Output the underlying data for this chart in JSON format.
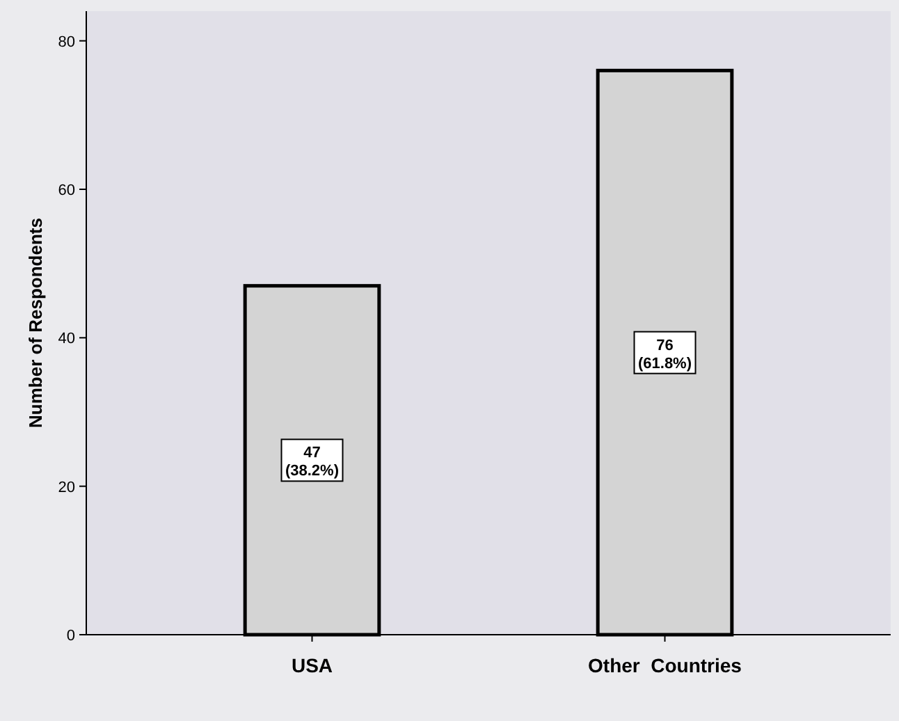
{
  "chart_data": {
    "type": "bar",
    "ylabel": "Number of Respondents",
    "categories": [
      "USA",
      "Other  Countries"
    ],
    "values": [
      47,
      76
    ],
    "color": "#d4d4d4",
    "value_labels": [
      "47 (38.2%)",
      "76 (61.8%)"
    ],
    "ylim": [
      0,
      84
    ],
    "yticks": [
      0,
      20,
      40,
      60,
      80
    ],
    "grid": false
  }
}
